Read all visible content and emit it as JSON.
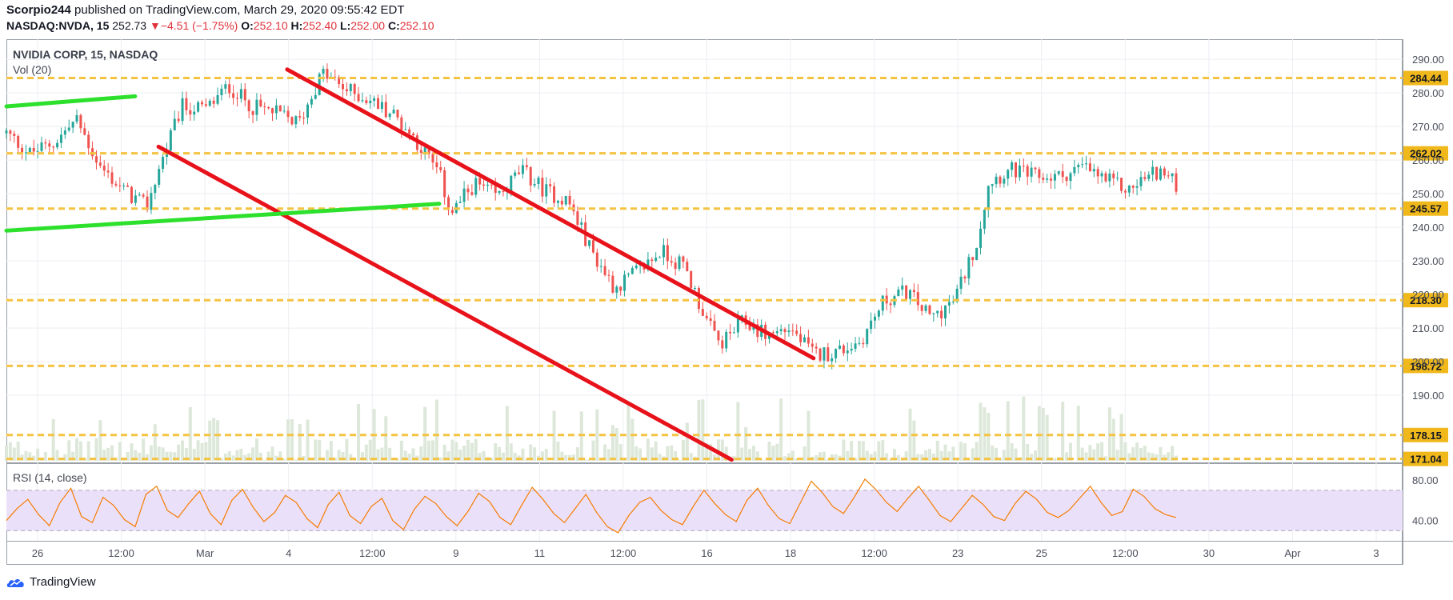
{
  "header": {
    "author": "Scorpio244",
    "published_text": "published on TradingView.com, March 29, 2020 09:55:42 EDT",
    "symbol": "NASDAQ:NVDA, 15",
    "last": "252.73",
    "change_arrow": "▼",
    "change": "−4.51 (−1.75%)",
    "o_label": "O:",
    "o_value": "252.10",
    "h_label": "H:",
    "h_value": "252.40",
    "l_label": "L:",
    "l_value": "252.00",
    "c_label": "C:",
    "c_value": "252.10"
  },
  "main_pane": {
    "title": "NVIDIA CORP, 15, NASDAQ",
    "volume_label": "Vol (20)"
  },
  "rsi_pane": {
    "title": "RSI (14, close)"
  },
  "footer": {
    "brand": "TradingView"
  },
  "colors": {
    "up": "#26a69a",
    "down": "#ef5350",
    "level_line": "#f5c342",
    "level_badge": "#f0b81b",
    "channel": "#e8121b",
    "support": "#2ce02c",
    "rsi_line": "#f57c00",
    "rsi_band": "#ebe0fa",
    "volume": "#dde8da",
    "grid": "#eceef2"
  },
  "chart_data": [
    {
      "type": "candlestick",
      "title": "NVIDIA CORP, 15, NASDAQ",
      "ylim": [
        170,
        296
      ],
      "y_ticks": [
        190,
        200,
        210,
        220,
        230,
        240,
        250,
        260,
        270,
        280,
        290
      ],
      "y_tick_labels": [
        "190.00",
        "200.00",
        "210.00",
        "220.00",
        "230.00",
        "240.00",
        "250.00",
        "260.00",
        "270.00",
        "280.00",
        "290.00"
      ],
      "x_ticks": [
        "26",
        "12:00",
        "Mar",
        "4",
        "12:00",
        "9",
        "11",
        "12:00",
        "16",
        "18",
        "12:00",
        "23",
        "25",
        "12:00",
        "30",
        "Apr",
        "3"
      ],
      "price_path": [
        [
          0,
          268
        ],
        [
          0.02,
          262
        ],
        [
          0.04,
          265
        ],
        [
          0.06,
          272
        ],
        [
          0.08,
          258
        ],
        [
          0.1,
          251
        ],
        [
          0.12,
          246
        ],
        [
          0.13,
          257
        ],
        [
          0.15,
          276
        ],
        [
          0.17,
          275
        ],
        [
          0.19,
          282
        ],
        [
          0.21,
          276
        ],
        [
          0.23,
          274
        ],
        [
          0.25,
          271
        ],
        [
          0.27,
          286
        ],
        [
          0.29,
          281
        ],
        [
          0.31,
          278
        ],
        [
          0.33,
          274
        ],
        [
          0.35,
          266
        ],
        [
          0.37,
          256
        ],
        [
          0.38,
          244
        ],
        [
          0.4,
          253
        ],
        [
          0.42,
          249
        ],
        [
          0.44,
          257
        ],
        [
          0.46,
          251
        ],
        [
          0.48,
          248
        ],
        [
          0.5,
          233
        ],
        [
          0.52,
          222
        ],
        [
          0.54,
          227
        ],
        [
          0.56,
          233
        ],
        [
          0.58,
          228
        ],
        [
          0.6,
          211
        ],
        [
          0.61,
          205
        ],
        [
          0.63,
          212
        ],
        [
          0.65,
          208
        ],
        [
          0.67,
          210
        ],
        [
          0.69,
          202
        ],
        [
          0.71,
          203
        ],
        [
          0.73,
          206
        ],
        [
          0.75,
          218
        ],
        [
          0.77,
          221
        ],
        [
          0.79,
          213
        ],
        [
          0.81,
          218
        ],
        [
          0.83,
          236
        ],
        [
          0.84,
          254
        ],
        [
          0.86,
          257
        ],
        [
          0.88,
          255
        ],
        [
          0.9,
          255
        ],
        [
          0.92,
          258
        ],
        [
          0.94,
          254
        ],
        [
          0.96,
          251
        ],
        [
          0.97,
          254
        ],
        [
          0.985,
          257
        ],
        [
          1,
          252.7
        ]
      ],
      "series": [
        {
          "name": "Vol (20)",
          "type": "volume"
        }
      ],
      "levels": [
        {
          "price": 284.44,
          "label": "284.44"
        },
        {
          "price": 262.02,
          "label": "262.02"
        },
        {
          "price": 245.57,
          "label": "245.57"
        },
        {
          "price": 218.3,
          "label": "218.30"
        },
        {
          "price": 198.72,
          "label": "198.72"
        },
        {
          "price": 178.15,
          "label": "178.15"
        },
        {
          "price": 171.04,
          "label": "171.04"
        }
      ],
      "trendlines": [
        {
          "color": "channel",
          "from": [
            0.24,
            287
          ],
          "to": [
            0.69,
            201
          ]
        },
        {
          "color": "channel",
          "from": [
            0.13,
            264
          ],
          "to": [
            0.62,
            170.8
          ]
        },
        {
          "color": "support",
          "from": [
            0,
            276
          ],
          "to": [
            0.11,
            279
          ]
        },
        {
          "color": "support",
          "from": [
            0,
            239
          ],
          "to": [
            0.37,
            247
          ]
        }
      ]
    },
    {
      "type": "line",
      "title": "RSI (14, close)",
      "ylim": [
        20,
        96
      ],
      "y_ticks": [
        40,
        80
      ],
      "y_tick_labels": [
        "40.00",
        "80.00"
      ],
      "band": [
        30,
        70
      ],
      "series": [
        {
          "name": "RSI (14, close)",
          "values": [
            40,
            52,
            61,
            46,
            35,
            58,
            72,
            44,
            38,
            63,
            55,
            41,
            34,
            66,
            74,
            50,
            43,
            57,
            69,
            47,
            36,
            60,
            71,
            53,
            39,
            48,
            65,
            58,
            42,
            33,
            56,
            68,
            45,
            37,
            54,
            62,
            40,
            31,
            51,
            64,
            57,
            44,
            35,
            49,
            67,
            59,
            43,
            36,
            55,
            73,
            61,
            47,
            38,
            52,
            66,
            48,
            34,
            28,
            45,
            58,
            63,
            50,
            41,
            36,
            54,
            70,
            57,
            46,
            39,
            60,
            72,
            55,
            42,
            37,
            58,
            79,
            68,
            54,
            47,
            63,
            81,
            71,
            58,
            49,
            62,
            74,
            60,
            45,
            39,
            52,
            65,
            56,
            44,
            40,
            57,
            69,
            61,
            48,
            43,
            50,
            62,
            74,
            58,
            45,
            49,
            71,
            64,
            52,
            46,
            43
          ]
        }
      ]
    }
  ]
}
